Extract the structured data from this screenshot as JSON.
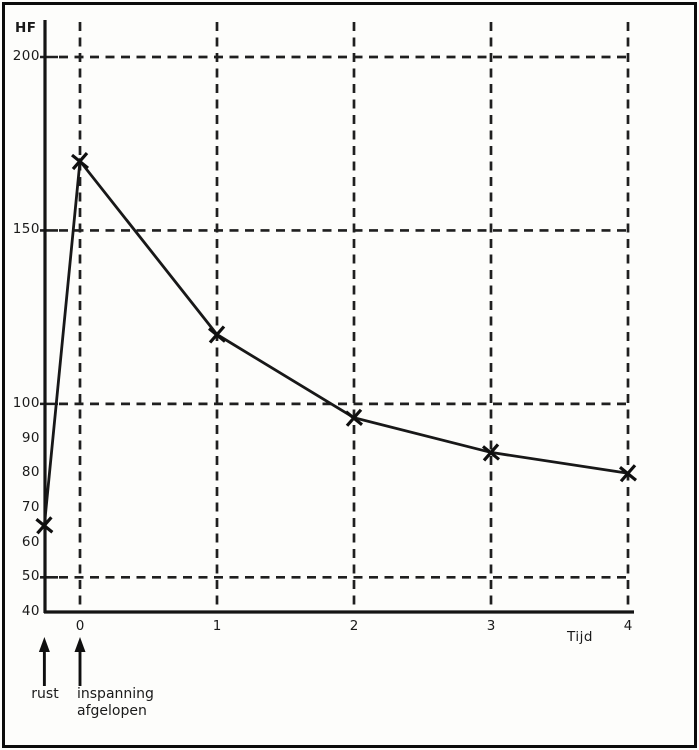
{
  "chart_data": {
    "type": "line",
    "title": "",
    "ylabel": "HF",
    "xlabel": "Tijd",
    "x_ticks": [
      0,
      1,
      2,
      3,
      4
    ],
    "y_tick_labels": [
      200,
      150,
      100,
      90,
      80,
      70,
      60,
      50,
      40
    ],
    "y_gridlines": [
      200,
      150,
      100,
      50
    ],
    "x_gridlines": [
      0,
      1,
      2,
      3,
      4
    ],
    "ylim": [
      40,
      210
    ],
    "xlim": [
      -0.26,
      4
    ],
    "grid": "dashed",
    "series": [
      {
        "points": [
          {
            "x": -0.26,
            "y": 65,
            "note": "rust"
          },
          {
            "x": 0,
            "y": 170
          },
          {
            "x": 1,
            "y": 120
          },
          {
            "x": 2,
            "y": 96
          },
          {
            "x": 3,
            "y": 86
          },
          {
            "x": 4,
            "y": 80
          }
        ]
      }
    ],
    "annotations": [
      {
        "x": -0.26,
        "lines": [
          "rust"
        ]
      },
      {
        "x": 0,
        "lines": [
          "inspanning",
          "afgelopen"
        ]
      }
    ],
    "ink_color": "#1a1a1a",
    "background_color": "#fdfdfb"
  }
}
